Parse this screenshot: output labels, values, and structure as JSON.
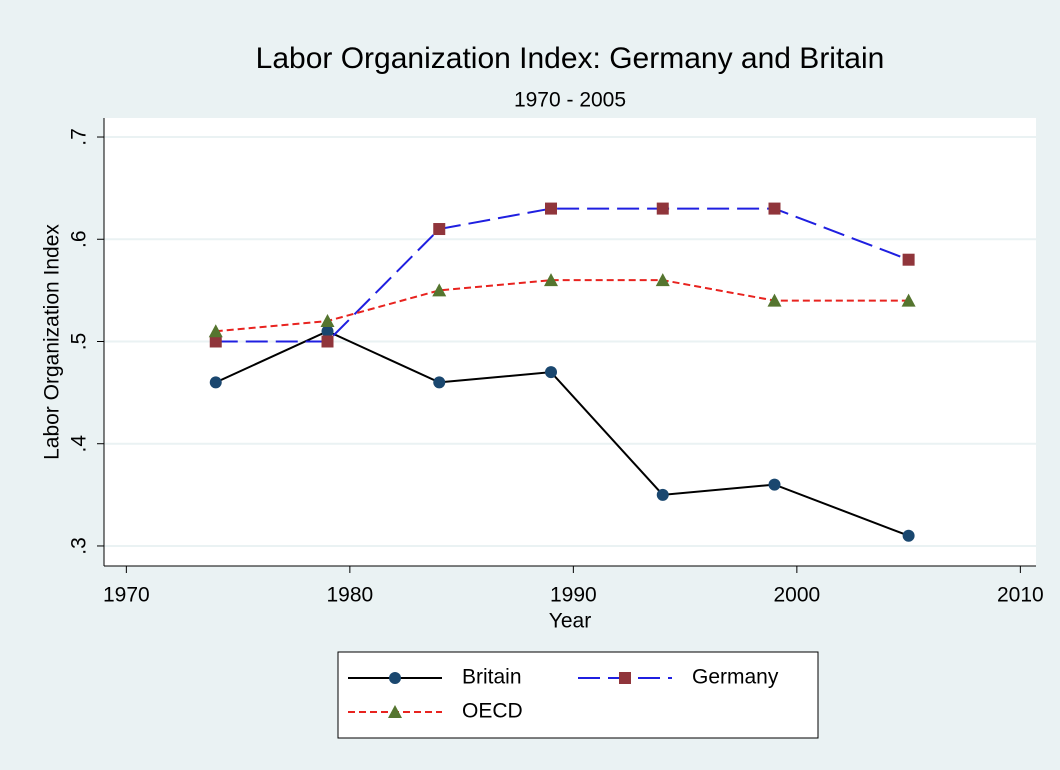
{
  "chart_data": {
    "type": "line",
    "title": "Labor Organization Index: Germany and Britain",
    "subtitle": "1970 - 2005",
    "x_label": "Year",
    "y_label": "Labor Organization Index",
    "x": [
      1974,
      1979,
      1984,
      1989,
      1994,
      1999,
      2005
    ],
    "series": [
      {
        "name": "Britain",
        "color": "#000000",
        "marker_color": "#1a476f",
        "marker": "circle",
        "line_style": "solid",
        "values": [
          0.46,
          0.51,
          0.46,
          0.47,
          0.35,
          0.36,
          0.31
        ]
      },
      {
        "name": "Germany",
        "color": "#1f1fe0",
        "marker_color": "#90353b",
        "marker": "square",
        "line_style": "longdash",
        "values": [
          0.5,
          0.5,
          0.61,
          0.63,
          0.63,
          0.63,
          0.58
        ]
      },
      {
        "name": "OECD",
        "color": "#e8231f",
        "marker_color": "#55752f",
        "marker": "triangle",
        "line_style": "shortdash",
        "values": [
          0.51,
          0.52,
          0.55,
          0.56,
          0.56,
          0.54,
          0.54
        ]
      }
    ],
    "xlim": [
      1969,
      2010.7
    ],
    "xticks": [
      1970,
      1980,
      1990,
      2000,
      2010
    ],
    "ylim": [
      0.2804,
      0.7186
    ],
    "yticks": [
      {
        "value": 0.3,
        "label": ".3"
      },
      {
        "value": 0.4,
        "label": ".4"
      },
      {
        "value": 0.5,
        "label": ".5"
      },
      {
        "value": 0.6,
        "label": ".6"
      },
      {
        "value": 0.7,
        "label": ".7"
      }
    ],
    "grid": true,
    "legend": "bottom"
  }
}
